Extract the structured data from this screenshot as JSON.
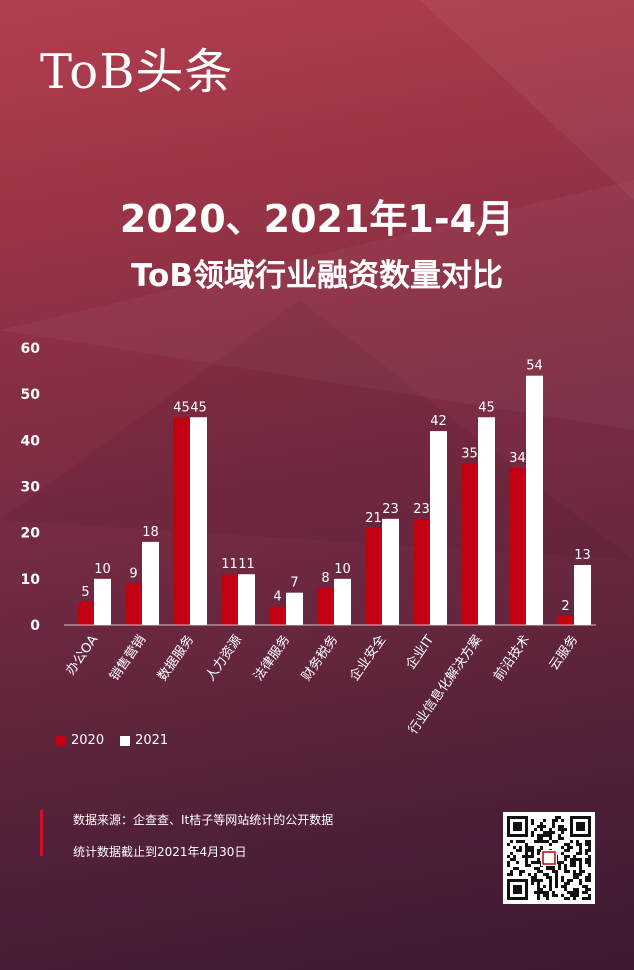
{
  "brand": {
    "logo_text": "ToB头条"
  },
  "heading": {
    "line1": "2020、2021年1-4月",
    "line2": "ToB领域行业融资数量对比"
  },
  "chart_data": {
    "type": "bar",
    "categories": [
      "办公OA",
      "销售营销",
      "数据服务",
      "人力资源",
      "法律服务",
      "财务税务",
      "企业安全",
      "企业IT",
      "行业信息化解决方案",
      "前沿技术",
      "云服务"
    ],
    "series": [
      {
        "name": "2020",
        "values": [
          5,
          9,
          45,
          11,
          4,
          8,
          21,
          23,
          35,
          34,
          2
        ],
        "color": "#c2000f"
      },
      {
        "name": "2021",
        "values": [
          10,
          18,
          45,
          11,
          7,
          10,
          23,
          42,
          45,
          54,
          13
        ],
        "color": "#ffffff"
      }
    ],
    "ylim": [
      0,
      60
    ],
    "yticks": [
      0,
      10,
      20,
      30,
      40,
      50,
      60
    ],
    "grid": false,
    "legend": "bottom-left"
  },
  "footer": {
    "source_line": "数据来源：企查查、It桔子等网站统计的公开数据",
    "date_line": "统计数据截止到2021年4月30日"
  },
  "qr": {
    "icon": "qr-code-icon"
  }
}
